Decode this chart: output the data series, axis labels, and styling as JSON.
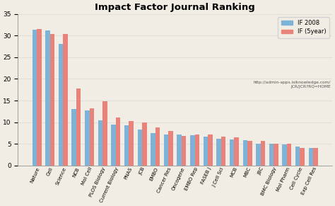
{
  "title": "Impact Factor Journal Ranking",
  "categories": [
    "Nature",
    "Cell",
    "Science",
    "NCB",
    "Mol Cell",
    "PLOS Biology",
    "Current Biology",
    "PNAS",
    "JCB",
    "EMBO",
    "Cancer Res",
    "Oncogene",
    "EMBO Rep",
    "FASEB J",
    "J Cell Sci",
    "MCB",
    "MBC",
    "JBC",
    "BMC Biology",
    "Mol Pharm",
    "Cell Cycle",
    "Exp Cell Res"
  ],
  "if2008": [
    31.4,
    31.2,
    28.1,
    13.0,
    12.7,
    10.5,
    9.5,
    9.2,
    8.3,
    7.5,
    7.2,
    7.1,
    7.0,
    6.7,
    6.1,
    6.0,
    5.9,
    5.0,
    5.0,
    4.9,
    4.3,
    4.1
  ],
  "if5year": [
    31.6,
    30.3,
    30.4,
    17.8,
    13.2,
    14.9,
    11.1,
    10.3,
    10.0,
    8.8,
    8.0,
    6.9,
    7.2,
    7.2,
    6.6,
    6.5,
    5.7,
    5.6,
    5.0,
    5.0,
    4.0,
    4.0
  ],
  "color_2008": "#7EB3D8",
  "color_5year": "#E8827A",
  "url_text": "http://admin-apps.isiknowledge.com/\nJCR/JCR?RQ=HOME",
  "ylabel_max": 35,
  "background_color": "#F2EDE4",
  "legend_2008": "IF 2008",
  "legend_5year": "IF (5year)"
}
